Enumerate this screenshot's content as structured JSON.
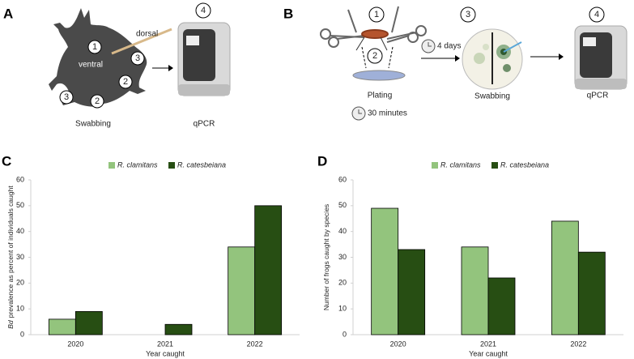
{
  "panel_a": {
    "label": "A",
    "markers": [
      "1",
      "3",
      "2",
      "2",
      "3"
    ],
    "step_4": "4",
    "dorsal": "dorsal",
    "ventral": "ventral",
    "swabbing": "Swabbing",
    "qpcr": "qPCR"
  },
  "panel_b": {
    "label": "B",
    "steps": [
      "1",
      "2",
      "3",
      "4"
    ],
    "plating": "Plating",
    "time": "30 minutes",
    "days": "4 days",
    "swabbing": "Swabbing",
    "qpcr": "qPCR"
  },
  "chart_data": [
    {
      "type": "bar",
      "panel_label": "C",
      "categories": [
        "2020",
        "2021",
        "2022"
      ],
      "series": [
        {
          "name": "R. clamitans",
          "color": "#93c47d",
          "values": [
            6,
            null,
            34
          ]
        },
        {
          "name": "R. catesbeiana",
          "color": "#274e13",
          "values": [
            9,
            4,
            50
          ]
        }
      ],
      "ylim": [
        0,
        60
      ],
      "yticks": [
        0,
        10,
        20,
        30,
        40,
        50,
        60
      ],
      "xlabel": "Year caught",
      "ylabel_prefix": "Bd",
      "ylabel": "prevalence as percent of individuals caught",
      "legend": "top",
      "grid": false
    },
    {
      "type": "bar",
      "panel_label": "D",
      "categories": [
        "2020",
        "2021",
        "2022"
      ],
      "series": [
        {
          "name": "R. clamitans",
          "color": "#93c47d",
          "values": [
            49,
            34,
            44
          ]
        },
        {
          "name": "R. catesbeiana",
          "color": "#274e13",
          "values": [
            33,
            22,
            32
          ]
        }
      ],
      "ylim": [
        0,
        60
      ],
      "yticks": [
        0,
        10,
        20,
        30,
        40,
        50,
        60
      ],
      "xlabel": "Year caught",
      "ylabel": "Number of frogs caught by species",
      "legend": "top",
      "grid": false
    }
  ]
}
